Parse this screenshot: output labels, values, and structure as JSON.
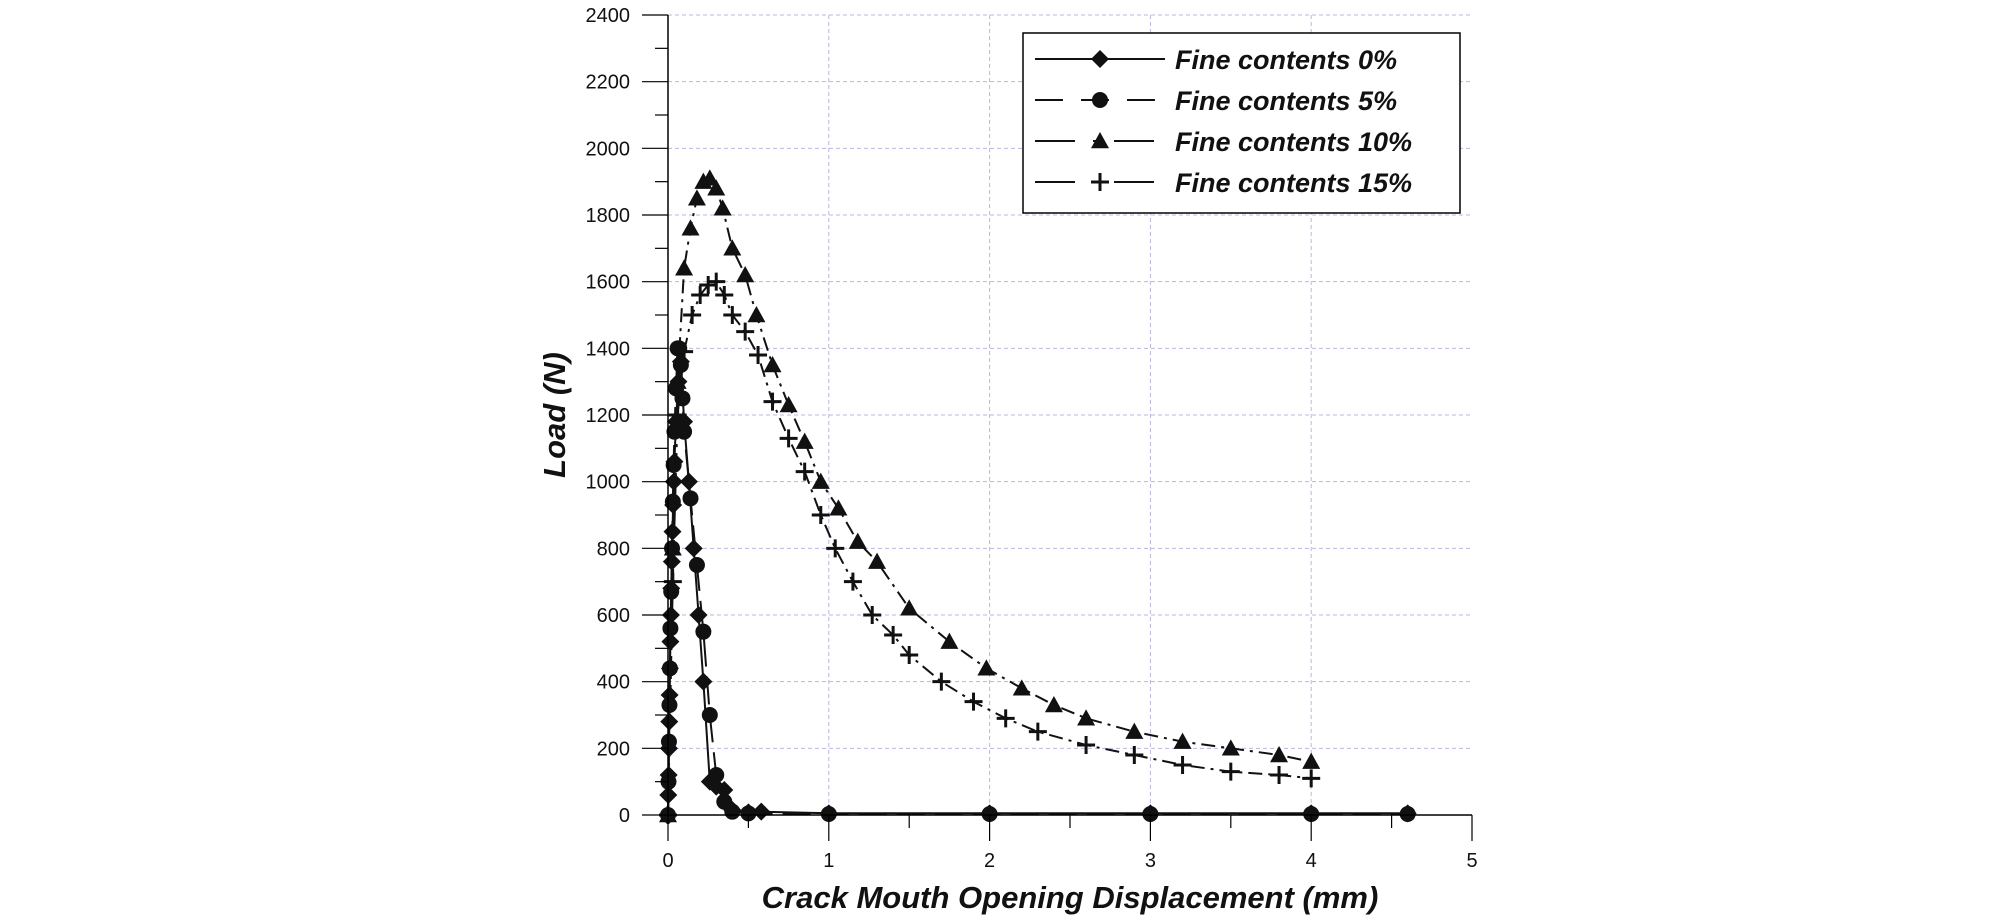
{
  "chart_data": {
    "type": "line",
    "xlabel": "Crack Mouth Opening Displacement (mm)",
    "ylabel": "Load (N)",
    "xlim": [
      0,
      5
    ],
    "ylim": [
      0,
      2400
    ],
    "x_ticks": [
      "0",
      "1",
      "2",
      "3",
      "4",
      "5"
    ],
    "y_ticks": [
      "0",
      "200",
      "400",
      "600",
      "800",
      "1000",
      "1200",
      "1400",
      "1600",
      "1800",
      "2000",
      "2200",
      "2400"
    ],
    "grid": true,
    "legend_position": "top-right",
    "series": [
      {
        "name": "Fine contents 0%",
        "marker": "diamond",
        "dash": "solid",
        "x": [
          0.0,
          0.002,
          0.004,
          0.006,
          0.008,
          0.01,
          0.012,
          0.015,
          0.018,
          0.02,
          0.024,
          0.028,
          0.032,
          0.036,
          0.04,
          0.05,
          0.065,
          0.08,
          0.1,
          0.13,
          0.16,
          0.19,
          0.22,
          0.26,
          0.3,
          0.35,
          0.4,
          0.5,
          0.58,
          1.0,
          2.0,
          3.0,
          4.0,
          4.6
        ],
        "y": [
          0,
          60,
          120,
          200,
          280,
          360,
          440,
          520,
          600,
          680,
          760,
          850,
          930,
          1000,
          1060,
          1180,
          1300,
          1360,
          1180,
          1000,
          800,
          600,
          400,
          100,
          85,
          75,
          15,
          8,
          10,
          5,
          5,
          5,
          5,
          5
        ]
      },
      {
        "name": "Fine contents 5%",
        "marker": "circle",
        "dash": "long-dash",
        "x": [
          0.0,
          0.003,
          0.006,
          0.009,
          0.012,
          0.015,
          0.02,
          0.025,
          0.03,
          0.035,
          0.04,
          0.05,
          0.06,
          0.07,
          0.08,
          0.09,
          0.1,
          0.14,
          0.18,
          0.22,
          0.26,
          0.3,
          0.35,
          0.4,
          0.5,
          1.0,
          2.0,
          3.0,
          4.0,
          4.6
        ],
        "y": [
          0,
          100,
          220,
          330,
          440,
          560,
          670,
          800,
          940,
          1050,
          1150,
          1280,
          1400,
          1400,
          1350,
          1250,
          1150,
          950,
          750,
          550,
          300,
          120,
          40,
          10,
          5,
          3,
          3,
          3,
          3,
          3
        ]
      },
      {
        "name": "Fine contents 10%",
        "marker": "triangle",
        "dash": "dash-dot",
        "x": [
          0.0,
          0.03,
          0.06,
          0.1,
          0.14,
          0.18,
          0.22,
          0.26,
          0.3,
          0.34,
          0.4,
          0.48,
          0.55,
          0.65,
          0.75,
          0.85,
          0.95,
          1.06,
          1.18,
          1.3,
          1.5,
          1.75,
          1.98,
          2.2,
          2.4,
          2.6,
          2.9,
          3.2,
          3.5,
          3.8,
          4.0
        ],
        "y": [
          0,
          800,
          1300,
          1640,
          1760,
          1850,
          1900,
          1910,
          1880,
          1820,
          1700,
          1620,
          1500,
          1350,
          1230,
          1120,
          1000,
          920,
          820,
          760,
          620,
          520,
          440,
          380,
          330,
          290,
          250,
          220,
          200,
          180,
          160
        ]
      },
      {
        "name": "Fine contents 15%",
        "marker": "plus",
        "dash": "dash-dot",
        "x": [
          0.0,
          0.03,
          0.06,
          0.1,
          0.15,
          0.2,
          0.25,
          0.3,
          0.35,
          0.4,
          0.48,
          0.56,
          0.65,
          0.75,
          0.85,
          0.95,
          1.04,
          1.15,
          1.27,
          1.4,
          1.5,
          1.7,
          1.9,
          2.1,
          2.3,
          2.6,
          2.9,
          3.2,
          3.5,
          3.8,
          4.0
        ],
        "y": [
          0,
          700,
          1200,
          1390,
          1500,
          1560,
          1590,
          1600,
          1560,
          1500,
          1450,
          1380,
          1240,
          1130,
          1030,
          900,
          800,
          700,
          600,
          540,
          480,
          400,
          340,
          290,
          250,
          210,
          180,
          150,
          130,
          120,
          110
        ]
      }
    ]
  }
}
